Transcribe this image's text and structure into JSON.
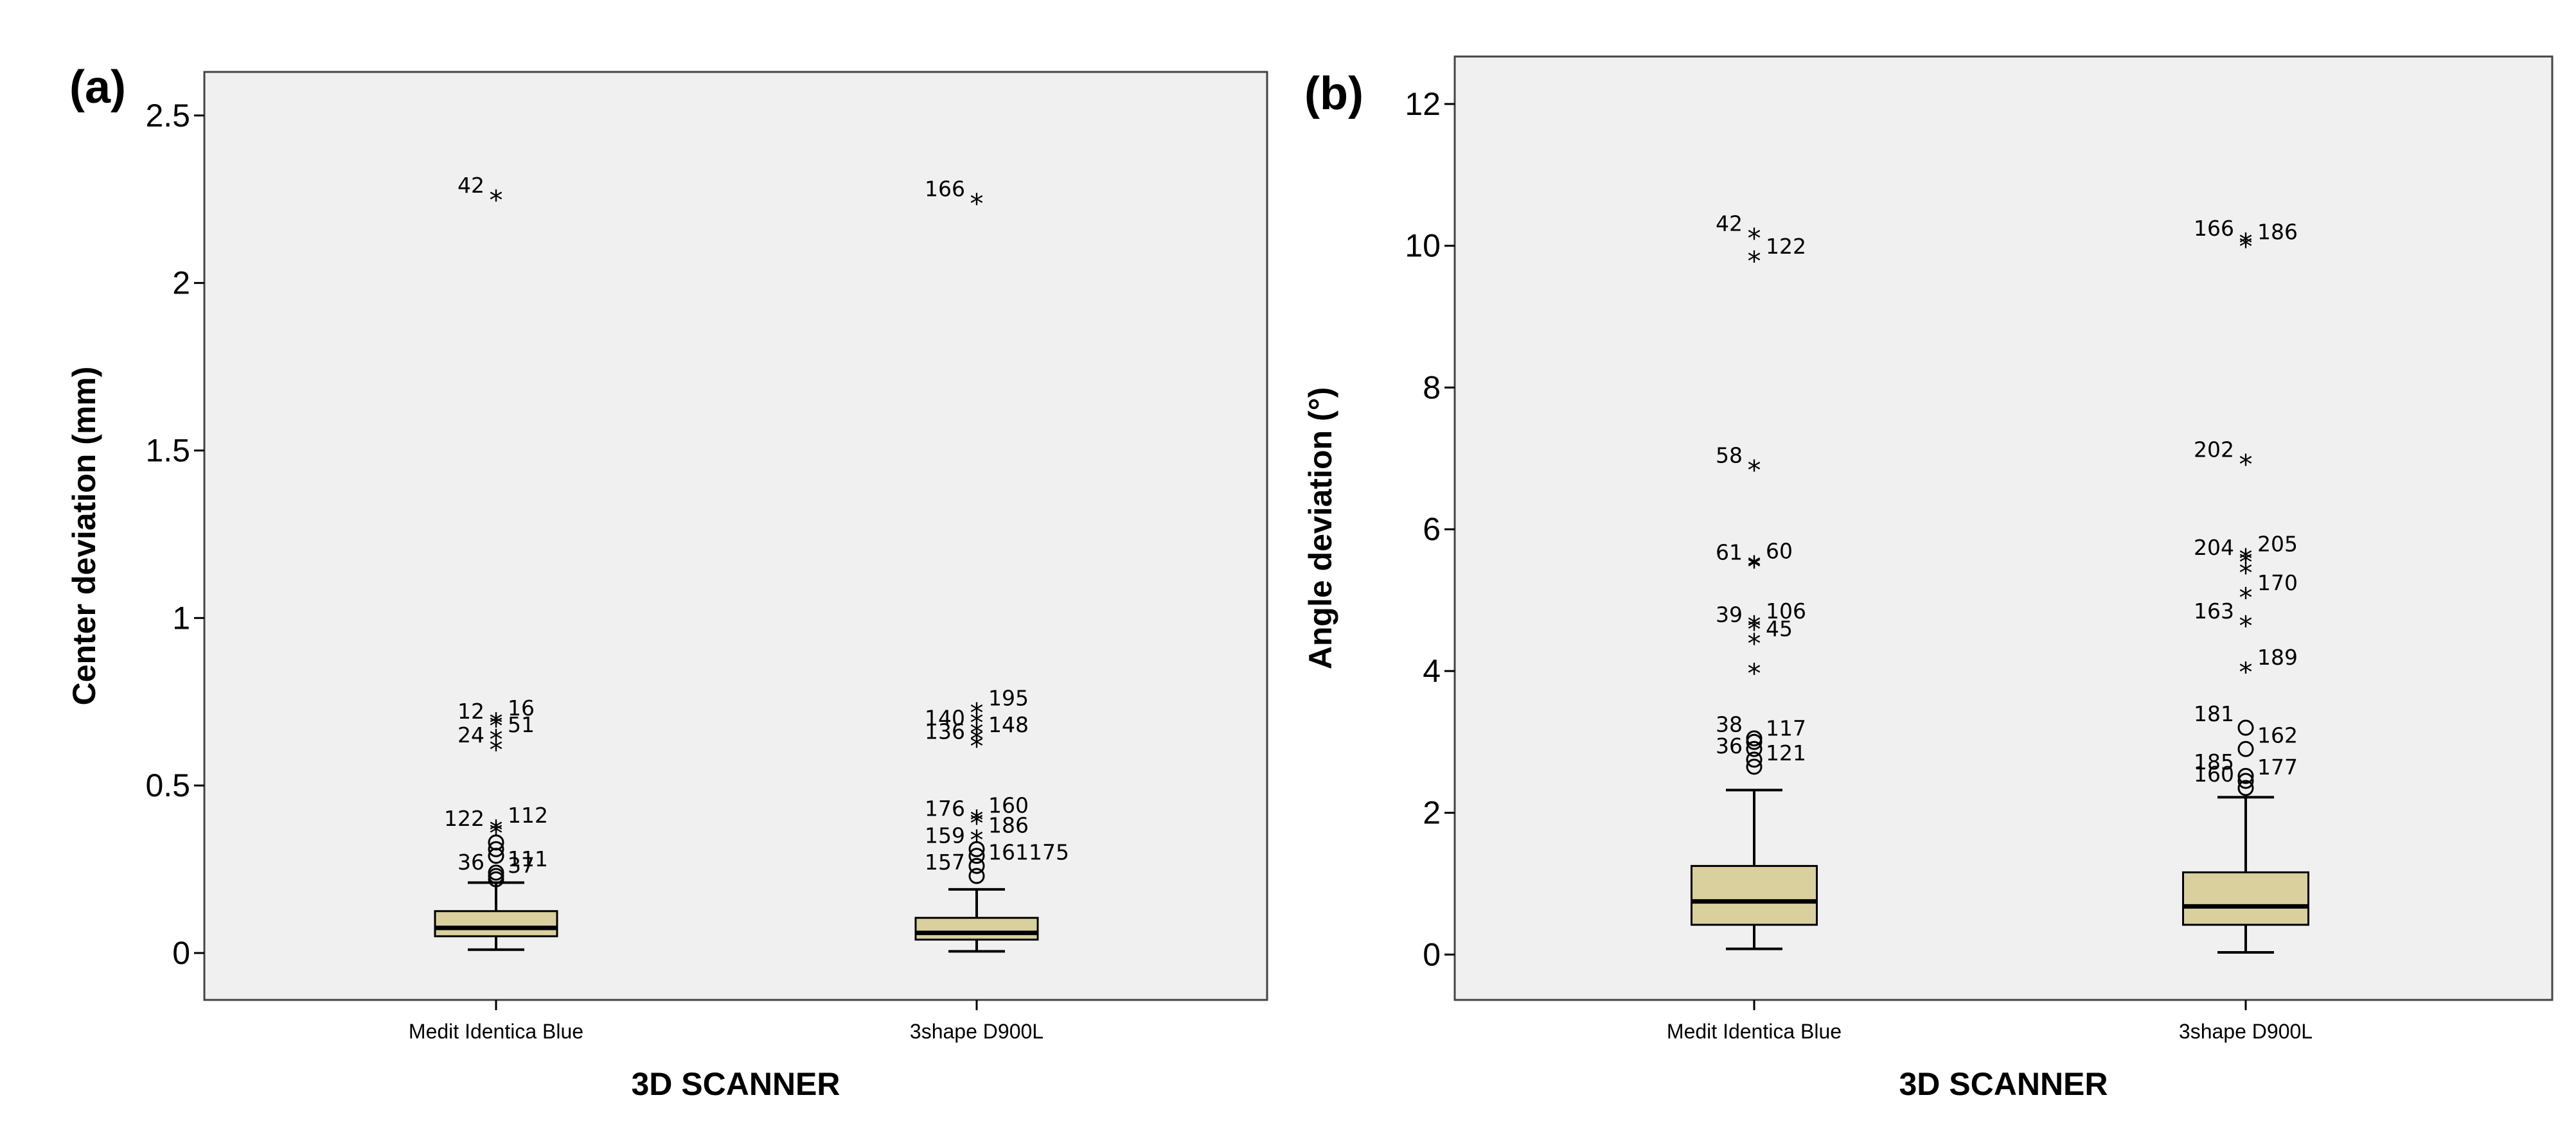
{
  "chart_data": [
    {
      "panel_label": "(a)",
      "type": "box",
      "xlabel": "3D SCANNER",
      "ylabel": "Center deviation (mm)",
      "ylim": [
        -0.14,
        2.63
      ],
      "yticks": [
        0,
        0.5,
        1,
        1.5,
        2,
        2.5
      ],
      "ytick_labels": [
        "0",
        "0.5",
        "1",
        "1.5",
        "2",
        "2.5"
      ],
      "categories": [
        "Medit Identica Blue",
        "3shape D900L"
      ],
      "boxes": [
        {
          "whisker_low": 0.01,
          "q1": 0.05,
          "median": 0.075,
          "q3": 0.125,
          "whisker_high": 0.21,
          "outliers": [
            {
              "value": 2.25,
              "marker": "star",
              "label": "42"
            },
            {
              "value": 0.69,
              "marker": "star",
              "label": "16"
            },
            {
              "value": 0.68,
              "marker": "star",
              "label": "12"
            },
            {
              "value": 0.64,
              "marker": "star",
              "label": "51"
            },
            {
              "value": 0.61,
              "marker": "star",
              "label": "24"
            },
            {
              "value": 0.37,
              "marker": "star",
              "label": "112"
            },
            {
              "value": 0.36,
              "marker": "star",
              "label": "122"
            },
            {
              "value": 0.33,
              "marker": "circle",
              "label": ""
            },
            {
              "value": 0.31,
              "marker": "circle",
              "label": ""
            },
            {
              "value": 0.29,
              "marker": "circle",
              "label": ""
            },
            {
              "value": 0.24,
              "marker": "circle",
              "label": "111"
            },
            {
              "value": 0.23,
              "marker": "circle",
              "label": "36"
            },
            {
              "value": 0.22,
              "marker": "circle",
              "label": "37"
            }
          ]
        },
        {
          "whisker_low": 0.005,
          "q1": 0.04,
          "median": 0.06,
          "q3": 0.105,
          "whisker_high": 0.19,
          "outliers": [
            {
              "value": 2.24,
              "marker": "star",
              "label": "166"
            },
            {
              "value": 0.72,
              "marker": "star",
              "label": "195"
            },
            {
              "value": 0.69,
              "marker": "star",
              "label": ""
            },
            {
              "value": 0.66,
              "marker": "star",
              "label": "140"
            },
            {
              "value": 0.64,
              "marker": "star",
              "label": "148"
            },
            {
              "value": 0.62,
              "marker": "star",
              "label": "136"
            },
            {
              "value": 0.4,
              "marker": "star",
              "label": "160"
            },
            {
              "value": 0.39,
              "marker": "star",
              "label": "176"
            },
            {
              "value": 0.34,
              "marker": "star",
              "label": "186"
            },
            {
              "value": 0.31,
              "marker": "circle",
              "label": "159"
            },
            {
              "value": 0.29,
              "marker": "circle",
              "label": ""
            },
            {
              "value": 0.26,
              "marker": "circle",
              "label": "161175"
            },
            {
              "value": 0.23,
              "marker": "circle",
              "label": "157"
            }
          ]
        }
      ]
    },
    {
      "panel_label": "(b)",
      "type": "box",
      "xlabel": "3D SCANNER",
      "ylabel": "Angle deviation (°)",
      "ylim": [
        -0.64,
        12.67
      ],
      "yticks": [
        0,
        2,
        4,
        6,
        8,
        10,
        12
      ],
      "ytick_labels": [
        "0",
        "2",
        "4",
        "6",
        "8",
        "10",
        "12"
      ],
      "categories": [
        "Medit Identica Blue",
        "3shape D900L"
      ],
      "boxes": [
        {
          "whisker_low": 0.08,
          "q1": 0.42,
          "median": 0.75,
          "q3": 1.25,
          "whisker_high": 2.32,
          "outliers": [
            {
              "value": 10.12,
              "marker": "star",
              "label": "42"
            },
            {
              "value": 9.8,
              "marker": "star",
              "label": "122"
            },
            {
              "value": 6.85,
              "marker": "star",
              "label": "58"
            },
            {
              "value": 5.5,
              "marker": "star",
              "label": "60"
            },
            {
              "value": 5.48,
              "marker": "star",
              "label": "61"
            },
            {
              "value": 4.65,
              "marker": "star",
              "label": "106"
            },
            {
              "value": 4.6,
              "marker": "star",
              "label": "39"
            },
            {
              "value": 4.4,
              "marker": "star",
              "label": "45"
            },
            {
              "value": 3.98,
              "marker": "star",
              "label": ""
            },
            {
              "value": 3.05,
              "marker": "circle",
              "label": "38"
            },
            {
              "value": 3.0,
              "marker": "circle",
              "label": "117"
            },
            {
              "value": 2.9,
              "marker": "circle",
              "label": ""
            },
            {
              "value": 2.75,
              "marker": "circle",
              "label": "36"
            },
            {
              "value": 2.65,
              "marker": "circle",
              "label": "121"
            }
          ]
        },
        {
          "whisker_low": 0.03,
          "q1": 0.42,
          "median": 0.68,
          "q3": 1.16,
          "whisker_high": 2.22,
          "outliers": [
            {
              "value": 10.05,
              "marker": "star",
              "label": "166"
            },
            {
              "value": 10.0,
              "marker": "star",
              "label": "186"
            },
            {
              "value": 6.93,
              "marker": "star",
              "label": "202"
            },
            {
              "value": 5.6,
              "marker": "star",
              "label": "205"
            },
            {
              "value": 5.55,
              "marker": "star",
              "label": "204"
            },
            {
              "value": 5.4,
              "marker": "star",
              "label": ""
            },
            {
              "value": 5.05,
              "marker": "star",
              "label": "170"
            },
            {
              "value": 4.65,
              "marker": "star",
              "label": "163"
            },
            {
              "value": 4.0,
              "marker": "star",
              "label": "189"
            },
            {
              "value": 3.2,
              "marker": "circle",
              "label": "181"
            },
            {
              "value": 2.9,
              "marker": "circle",
              "label": "162"
            },
            {
              "value": 2.52,
              "marker": "circle",
              "label": "185"
            },
            {
              "value": 2.45,
              "marker": "circle",
              "label": "177"
            },
            {
              "value": 2.35,
              "marker": "circle",
              "label": "160"
            }
          ]
        }
      ]
    }
  ]
}
